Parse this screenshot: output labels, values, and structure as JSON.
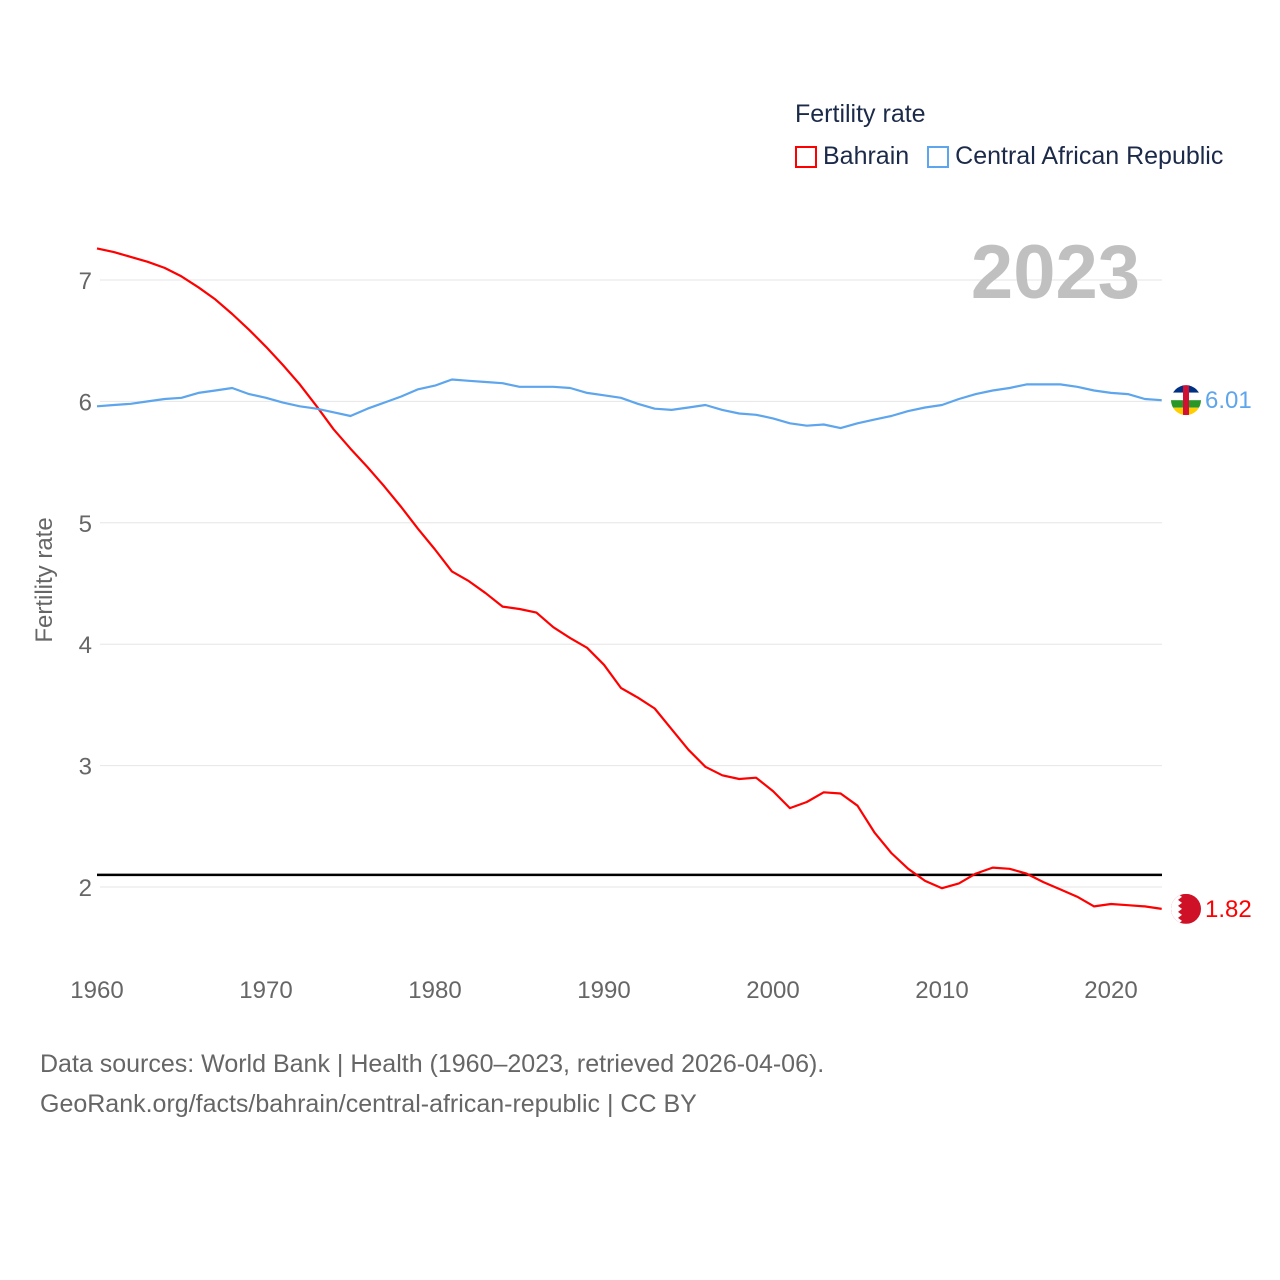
{
  "chart_data": {
    "type": "line",
    "title": "Fertility rate",
    "ylabel": "Fertility rate",
    "xlabel": "",
    "ylim": [
      1.45,
      7.55
    ],
    "xlim": [
      1960,
      2023
    ],
    "yticks": [
      2,
      3,
      4,
      5,
      6,
      7
    ],
    "xticks": [
      1960,
      1970,
      1980,
      1990,
      2000,
      2010,
      2020
    ],
    "grid": true,
    "legend_position": "top-right",
    "year_label": "2023",
    "reference_line": 2.1,
    "x": [
      1960,
      1961,
      1962,
      1963,
      1964,
      1965,
      1966,
      1967,
      1968,
      1969,
      1970,
      1971,
      1972,
      1973,
      1974,
      1975,
      1976,
      1977,
      1978,
      1979,
      1980,
      1981,
      1982,
      1983,
      1984,
      1985,
      1986,
      1987,
      1988,
      1989,
      1990,
      1991,
      1992,
      1993,
      1994,
      1995,
      1996,
      1997,
      1998,
      1999,
      2000,
      2001,
      2002,
      2003,
      2004,
      2005,
      2006,
      2007,
      2008,
      2009,
      2010,
      2011,
      2012,
      2013,
      2014,
      2015,
      2016,
      2017,
      2018,
      2019,
      2020,
      2021,
      2022,
      2023
    ],
    "series": [
      {
        "name": "Bahrain",
        "color": "#ff0000",
        "end_label": "1.82",
        "values": [
          7.26,
          7.23,
          7.19,
          7.15,
          7.1,
          7.03,
          6.94,
          6.84,
          6.72,
          6.59,
          6.45,
          6.3,
          6.14,
          5.96,
          5.77,
          5.61,
          5.46,
          5.3,
          5.13,
          4.95,
          4.78,
          4.6,
          4.52,
          4.42,
          4.31,
          4.29,
          4.26,
          4.14,
          4.05,
          3.97,
          3.83,
          3.64,
          3.56,
          3.47,
          3.3,
          3.13,
          2.99,
          2.92,
          2.89,
          2.9,
          2.79,
          2.65,
          2.7,
          2.78,
          2.77,
          2.67,
          2.45,
          2.28,
          2.15,
          2.05,
          1.99,
          2.03,
          2.11,
          2.16,
          2.15,
          2.11,
          2.04,
          1.98,
          1.92,
          1.84,
          1.86,
          1.85,
          1.84,
          1.82
        ]
      },
      {
        "name": "Central African Republic",
        "color": "#5da5ec",
        "end_label": "6.01",
        "values": [
          5.96,
          5.97,
          5.98,
          6.0,
          6.02,
          6.03,
          6.07,
          6.09,
          6.11,
          6.06,
          6.03,
          5.99,
          5.96,
          5.94,
          5.91,
          5.88,
          5.94,
          5.99,
          6.04,
          6.1,
          6.13,
          6.18,
          6.17,
          6.16,
          6.15,
          6.12,
          6.12,
          6.12,
          6.11,
          6.07,
          6.05,
          6.03,
          5.98,
          5.94,
          5.93,
          5.95,
          5.97,
          5.93,
          5.9,
          5.89,
          5.86,
          5.82,
          5.8,
          5.81,
          5.78,
          5.82,
          5.85,
          5.88,
          5.92,
          5.95,
          5.97,
          6.02,
          6.06,
          6.09,
          6.11,
          6.14,
          6.14,
          6.14,
          6.12,
          6.09,
          6.07,
          6.06,
          6.02,
          6.01
        ]
      }
    ]
  },
  "source": {
    "line1": "Data sources: World Bank | Health (1960–2023, retrieved 2026-04-06).",
    "line2": "GeoRank.org/facts/bahrain/central-african-republic | CC BY"
  }
}
